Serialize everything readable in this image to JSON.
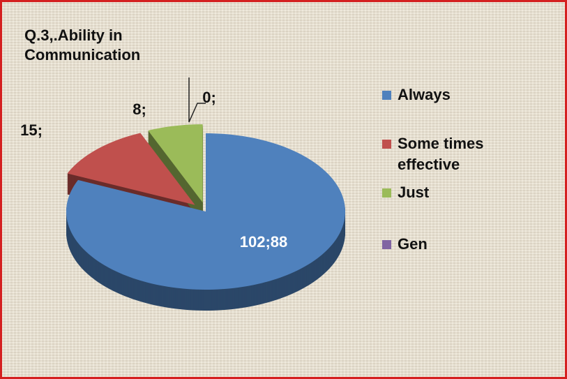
{
  "chart_data": {
    "type": "pie",
    "title": "Q.3,.Ability in Communication",
    "categories": [
      "Always",
      "Some times effective",
      "Just",
      "Gen"
    ],
    "values": [
      102,
      15,
      8,
      0
    ],
    "value_labels": [
      "102;88",
      "15;",
      "8;",
      "0;"
    ],
    "colors": [
      "#4f81bd",
      "#c0504d",
      "#9bbb59",
      "#8064a2"
    ],
    "legend": "right"
  }
}
